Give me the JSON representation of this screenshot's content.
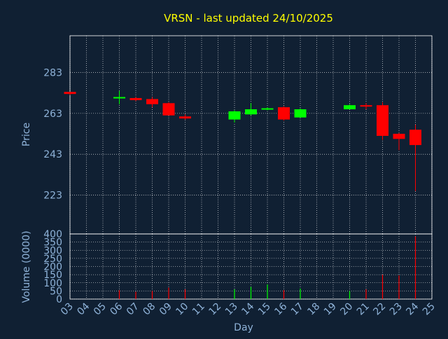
{
  "title": "VRSN - last updated 24/10/2025",
  "colors": {
    "background": "#102033",
    "title": "#ffff00",
    "axis_text": "#8fb3d9",
    "frame": "#ffffff",
    "grid": "#ffffff",
    "up": "#00ff00",
    "down": "#ff0000"
  },
  "chart_data": [
    {
      "type": "candlestick",
      "title": "VRSN - last updated 24/10/2025",
      "ylabel": "Price",
      "ylim": [
        204,
        301
      ],
      "yticks": [
        223,
        243,
        263,
        283
      ],
      "grid": true,
      "x": [
        "03",
        "06",
        "07",
        "08",
        "09",
        "10",
        "13",
        "14",
        "15",
        "16",
        "17",
        "20",
        "21",
        "22",
        "23",
        "24"
      ],
      "open": [
        273.5,
        270.5,
        270.5,
        270.0,
        268.0,
        261.5,
        260.0,
        262.5,
        265.0,
        266.0,
        261.0,
        265.0,
        267.0,
        267.0,
        253.0,
        255.0
      ],
      "high": [
        273.5,
        274.0,
        271.0,
        271.0,
        268.5,
        262.5,
        264.5,
        268.0,
        266.0,
        266.5,
        265.5,
        267.5,
        268.0,
        268.5,
        253.5,
        257.5
      ],
      "low": [
        272.0,
        267.5,
        269.0,
        266.0,
        262.0,
        260.0,
        258.5,
        262.0,
        264.5,
        259.5,
        261.0,
        265.0,
        265.0,
        250.0,
        245.0,
        225.0
      ],
      "close": [
        272.5,
        271.0,
        269.5,
        267.5,
        262.0,
        260.5,
        264.0,
        265.0,
        265.5,
        260.0,
        265.0,
        267.0,
        266.5,
        252.0,
        250.5,
        247.5
      ]
    },
    {
      "type": "bar",
      "ylabel": "Volume (0000)",
      "xlabel": "Day",
      "ylim": [
        0,
        400
      ],
      "yticks": [
        0,
        50,
        100,
        150,
        200,
        250,
        300,
        350,
        400
      ],
      "grid": true,
      "x_axis_labels": [
        "03",
        "04",
        "05",
        "06",
        "07",
        "08",
        "09",
        "10",
        "11",
        "12",
        "13",
        "14",
        "15",
        "16",
        "17",
        "18",
        "19",
        "20",
        "21",
        "22",
        "23",
        "24",
        "25"
      ],
      "categories": [
        "03",
        "06",
        "07",
        "08",
        "09",
        "10",
        "13",
        "14",
        "15",
        "16",
        "17",
        "20",
        "21",
        "22",
        "23",
        "24"
      ],
      "values": [
        0,
        55,
        45,
        50,
        70,
        60,
        60,
        75,
        90,
        55,
        65,
        50,
        60,
        150,
        145,
        385
      ],
      "direction": [
        "down",
        "down",
        "down",
        "down",
        "down",
        "down",
        "up",
        "up",
        "up",
        "down",
        "up",
        "up",
        "down",
        "down",
        "down",
        "down"
      ]
    }
  ]
}
